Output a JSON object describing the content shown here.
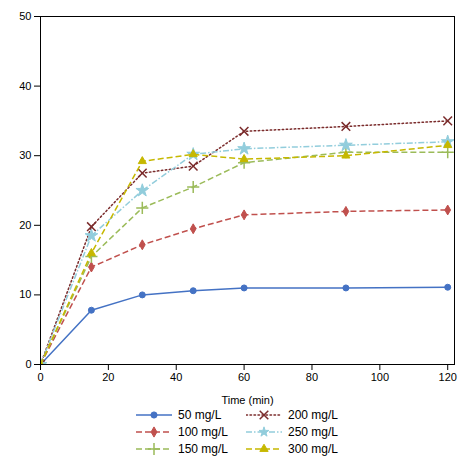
{
  "chart_data": {
    "type": "line",
    "xlabel": "Time (min)",
    "x": [
      0,
      15,
      30,
      45,
      60,
      90,
      120
    ],
    "series": [
      {
        "name": "50 mg/L",
        "color": "#4472C4",
        "marker": "circle",
        "line_style": "solid",
        "values": [
          0,
          7.8,
          10.0,
          10.6,
          11.0,
          11.0,
          11.1
        ]
      },
      {
        "name": "100 mg/L",
        "color": "#C0504D",
        "marker": "diamond",
        "line_style": "dashed",
        "values": [
          0,
          14.0,
          17.2,
          19.5,
          21.5,
          22.0,
          22.2
        ]
      },
      {
        "name": "150 mg/L",
        "color": "#9BBB59",
        "marker": "plus",
        "line_style": "dashed",
        "values": [
          0,
          15.5,
          22.5,
          25.5,
          29.0,
          30.5,
          30.5
        ]
      },
      {
        "name": "200 mg/L",
        "color": "#7B2C2C",
        "marker": "x",
        "line_style": "dotted",
        "values": [
          0,
          19.8,
          27.5,
          28.5,
          33.5,
          34.2,
          35.0
        ]
      },
      {
        "name": "250 mg/L",
        "color": "#92CDDC",
        "marker": "star",
        "line_style": "dashdot",
        "values": [
          0,
          18.5,
          25.0,
          30.2,
          31.0,
          31.5,
          32.0
        ]
      },
      {
        "name": "300 mg/L",
        "color": "#C6B800",
        "marker": "triangle",
        "line_style": "dashed",
        "values": [
          0,
          16.0,
          29.2,
          30.2,
          29.5,
          30.0,
          31.5
        ]
      }
    ],
    "xlim": [
      0,
      122
    ],
    "ylim": [
      0,
      50
    ],
    "xticks": [
      0,
      20,
      40,
      60,
      80,
      100,
      120
    ],
    "yticks": [
      0,
      10,
      20,
      30,
      40,
      50
    ],
    "grid": false,
    "legend": "bottom"
  }
}
